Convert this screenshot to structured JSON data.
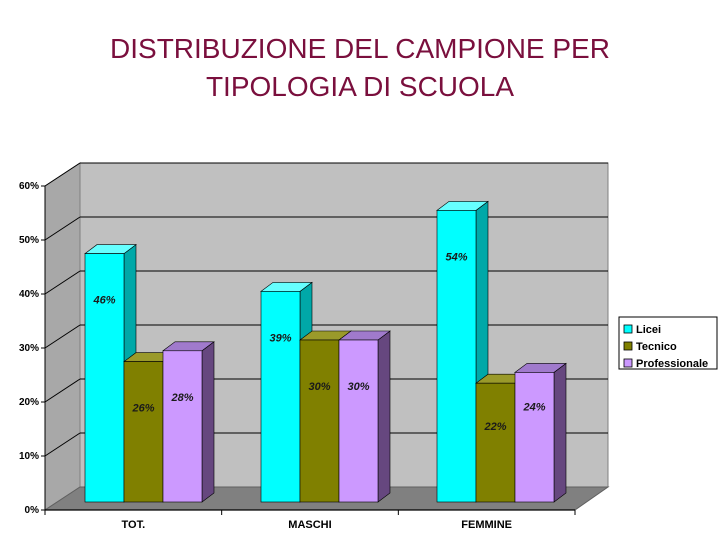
{
  "page": {
    "title_line1": "DISTRIBUZIONE DEL CAMPIONE PER",
    "title_line2": "TIPOLOGIA DI SCUOLA"
  },
  "chart_data": {
    "type": "bar",
    "categories": [
      "TOT.",
      "MASCHI",
      "FEMMINE"
    ],
    "series": [
      {
        "name": "Licei",
        "values": [
          46,
          39,
          54
        ],
        "labels": [
          "46%",
          "39%",
          "54%"
        ],
        "color": "#00ffff",
        "side_color": "#00a8a8",
        "top_color": "#66ffff"
      },
      {
        "name": "Tecnico",
        "values": [
          26,
          30,
          22
        ],
        "labels": [
          "26%",
          "30%",
          "22%"
        ],
        "color": "#808000",
        "side_color": "#4d4d00",
        "top_color": "#9a9a2a"
      },
      {
        "name": "Professionale",
        "values": [
          28,
          30,
          24
        ],
        "labels": [
          "28%",
          "30%",
          "24%"
        ],
        "color": "#cc99ff",
        "side_color": "#66477f",
        "top_color": "#a07acc"
      }
    ],
    "yticks": [
      "0%",
      "10%",
      "20%",
      "30%",
      "40%",
      "50%",
      "60%"
    ],
    "ylim": [
      0,
      60
    ],
    "grid": true,
    "legend_position": "right",
    "wall_color": "#c0c0c0",
    "floor_color": "#808080"
  }
}
